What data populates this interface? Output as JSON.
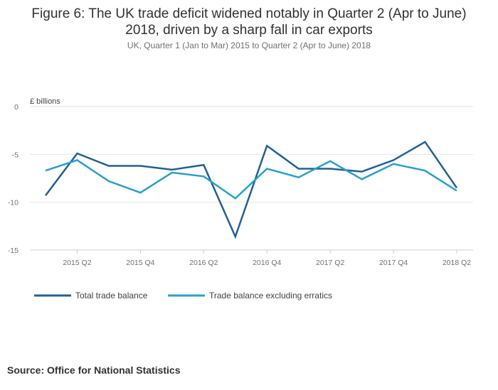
{
  "title_line1": "Figure 6: The UK trade deficit widened notably in Quarter 2 (Apr to June)",
  "title_line2": "2018, driven by a sharp fall in car exports",
  "subtitle": "UK, Quarter 1 (Jan to Mar) 2015 to Quarter 2 (Apr to June) 2018",
  "source": "Source: Office for National Statistics",
  "colors": {
    "total": "#206095",
    "excl": "#27a0cc",
    "grid": "#e6e6e6",
    "axis": "#cccccc"
  },
  "chart_data": {
    "type": "line",
    "ylabel": "£ billions",
    "ylim": [
      -15,
      0
    ],
    "yticks": [
      0,
      -5,
      -10,
      -15
    ],
    "ytick_labels": [
      "0",
      "-5",
      "-10",
      "-15"
    ],
    "x": [
      "2015 Q1",
      "2015 Q2",
      "2015 Q3",
      "2015 Q4",
      "2016 Q1",
      "2016 Q2",
      "2016 Q3",
      "2016 Q4",
      "2017 Q1",
      "2017 Q2",
      "2017 Q3",
      "2017 Q4",
      "2018 Q1",
      "2018 Q2"
    ],
    "xtick_labels": [
      {
        "index": 1,
        "label": "2015 Q2"
      },
      {
        "index": 3,
        "label": "2015 Q4"
      },
      {
        "index": 5,
        "label": "2016 Q2"
      },
      {
        "index": 7,
        "label": "2016 Q4"
      },
      {
        "index": 9,
        "label": "2017 Q2"
      },
      {
        "index": 11,
        "label": "2017 Q4"
      },
      {
        "index": 13,
        "label": "2018 Q2"
      }
    ],
    "series": [
      {
        "name": "Total trade balance",
        "color_key": "total",
        "values": [
          -9.3,
          -4.9,
          -6.2,
          -6.2,
          -6.6,
          -6.1,
          -13.6,
          -4.1,
          -6.5,
          -6.5,
          -6.8,
          -5.6,
          -3.7,
          -8.5
        ]
      },
      {
        "name": "Trade balance excluding erratics",
        "color_key": "excl",
        "values": [
          -6.7,
          -5.6,
          -7.8,
          -9.0,
          -6.9,
          -7.3,
          -9.6,
          -6.5,
          -7.4,
          -5.7,
          -7.6,
          -6.0,
          -6.7,
          -8.8
        ]
      }
    ]
  }
}
